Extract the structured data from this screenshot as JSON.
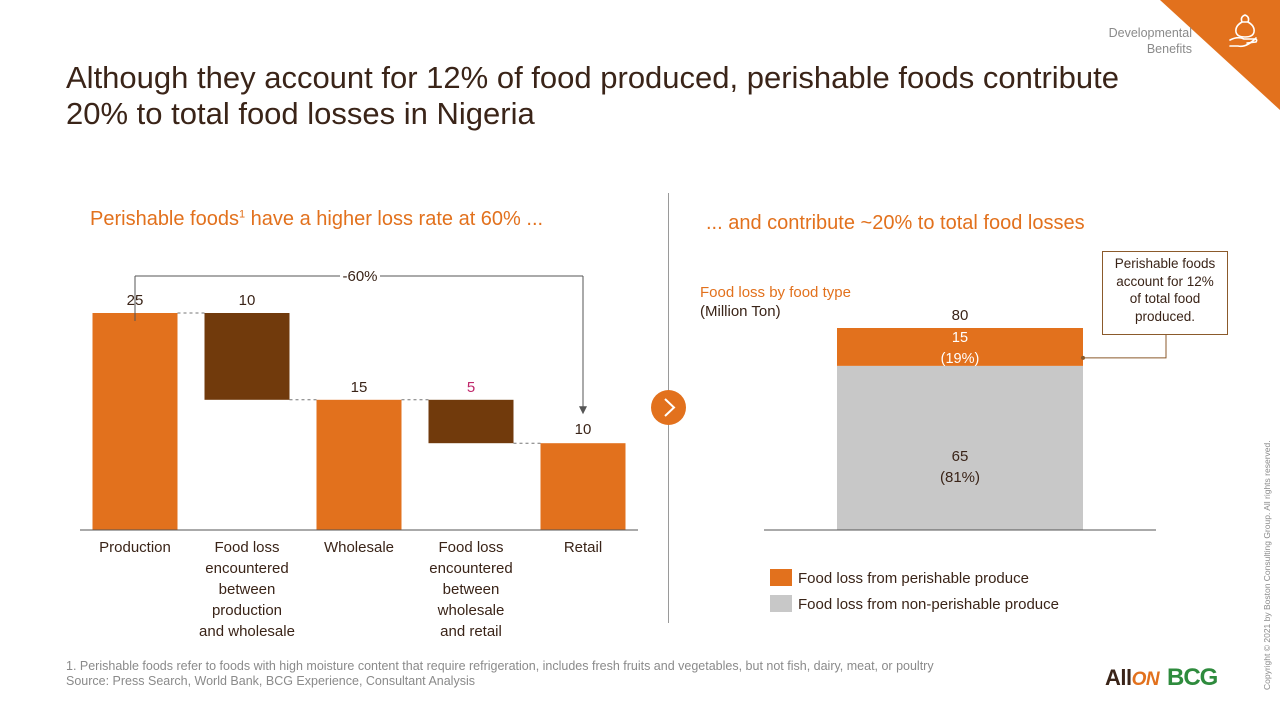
{
  "header": {
    "title": "Although they account for 12% of food produced, perishable foods contribute 20% to total food losses in Nigeria",
    "tag_line1": "Developmental",
    "tag_line2": "Benefits",
    "corner_icon": "hand-holding-sack-icon",
    "accent_color": "#e2711d"
  },
  "left_panel": {
    "subtitle_main": "Perishable foods",
    "subtitle_sup": "1",
    "subtitle_rest": " have a higher loss rate at 60% ..."
  },
  "right_panel": {
    "subtitle": "... and contribute ~20% to total food losses",
    "chart_title": "Food loss by food type",
    "chart_unit": "(Million Ton)",
    "callout_line1": "Perishable foods",
    "callout_line2": "account for 12%",
    "callout_line3": "of total food",
    "callout_line4": "produced."
  },
  "chart_data": [
    {
      "type": "bar",
      "subtype": "waterfall",
      "categories": [
        "Production",
        "Food loss encountered between production and wholesale",
        "Wholesale",
        "Food loss encountered between wholesale and retail",
        "Retail"
      ],
      "category_lines": [
        [
          "Production"
        ],
        [
          "Food loss",
          "encountered",
          "between",
          "production",
          "and wholesale"
        ],
        [
          "Wholesale"
        ],
        [
          "Food loss",
          "encountered",
          "between",
          "wholesale",
          "and retail"
        ],
        [
          "Retail"
        ]
      ],
      "values": [
        25,
        10,
        15,
        5,
        10
      ],
      "value_labels": [
        "25",
        "10",
        "15",
        "5",
        "10"
      ],
      "kinds": [
        "total",
        "decrease",
        "total",
        "decrease",
        "total"
      ],
      "colors": {
        "total": "#e2711d",
        "decrease": "#713a0c",
        "highlight_label": "#c0286b"
      },
      "annotation": "-60%",
      "ylim": [
        0,
        25
      ]
    },
    {
      "type": "bar",
      "subtype": "stacked",
      "categories": [
        "Food loss by food type"
      ],
      "total_label": "80",
      "series": [
        {
          "name": "Food loss from perishable produce",
          "values": [
            15
          ],
          "label": "15",
          "pct": "(19%)",
          "color": "#e2711d"
        },
        {
          "name": "Food loss from non-perishable produce",
          "values": [
            65
          ],
          "label": "65",
          "pct": "(81%)",
          "color": "#c8c8c8"
        }
      ],
      "ylim": [
        0,
        80
      ],
      "legend": "bottom"
    }
  ],
  "footer": {
    "footnote": "1. Perishable foods refer to foods with high moisture content that require refrigeration, includes fresh fruits and vegetables, but not fish, dairy, meat, or poultry",
    "source": "Source: Press Search, World Bank, BCG Experience, Consultant Analysis",
    "logo_allon_a": "All",
    "logo_allon_b": "ON",
    "logo_bcg": "BCG",
    "copyright": "Copyright © 2021 by Boston Consulting Group. All rights reserved."
  }
}
